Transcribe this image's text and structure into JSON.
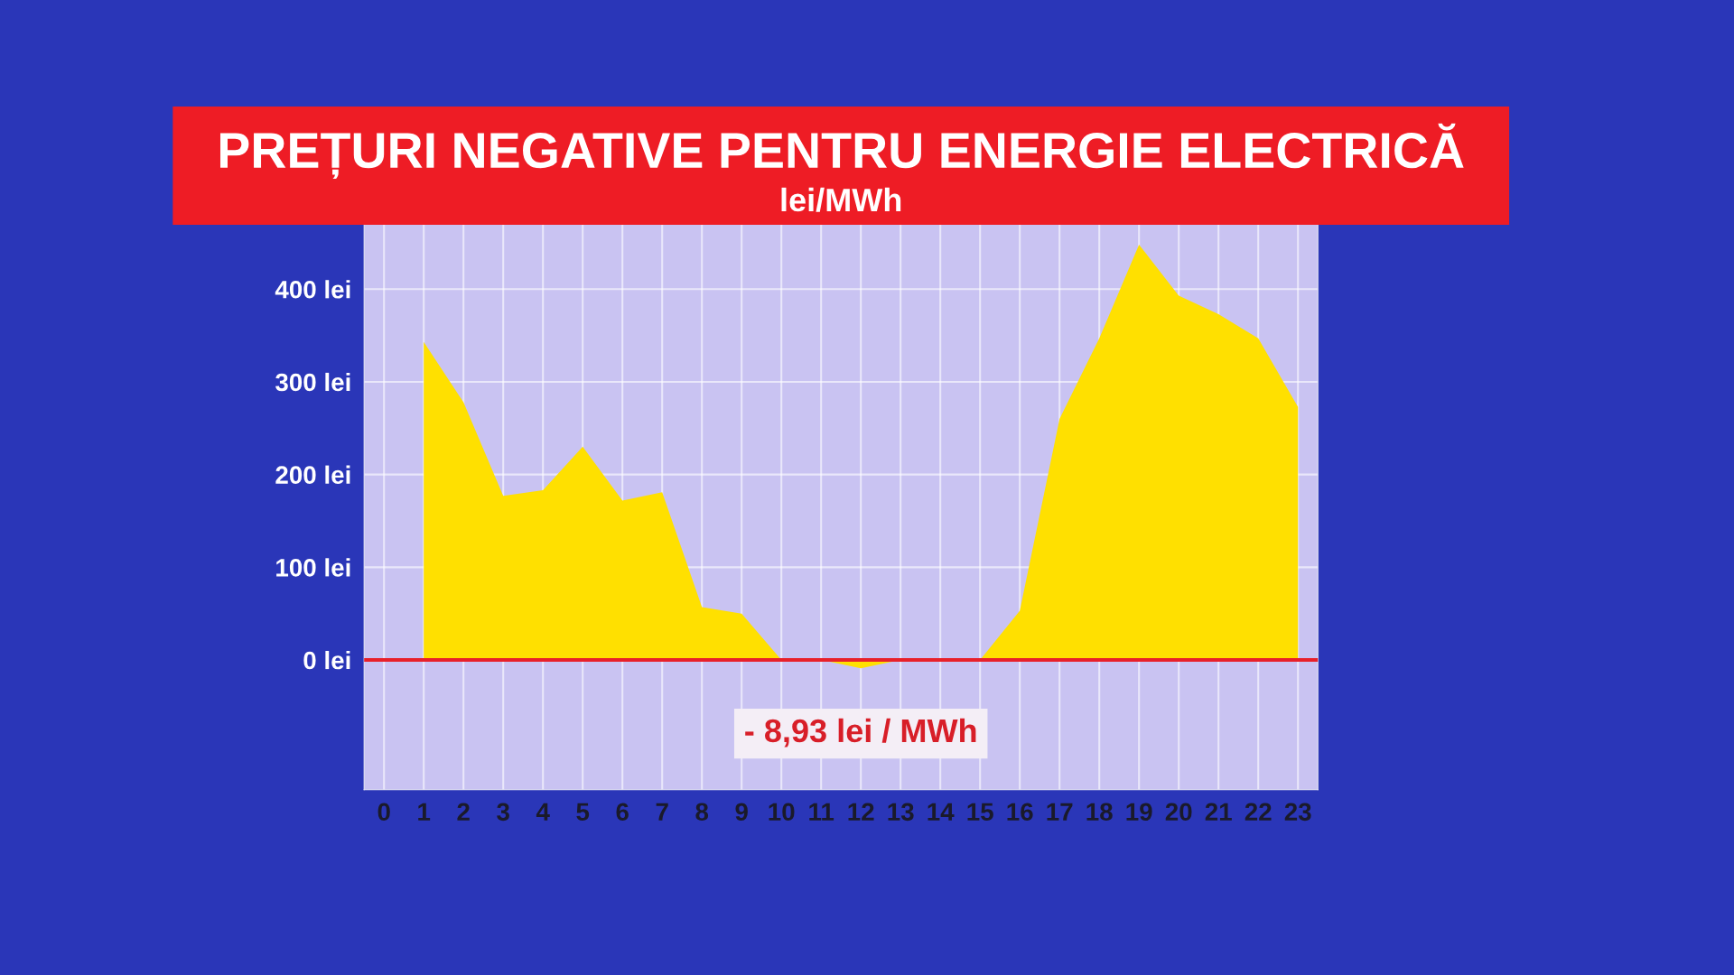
{
  "chart_data": {
    "type": "area",
    "title": "PREȚURI NEGATIVE PENTRU ENERGIE ELECTRICĂ",
    "subtitle": "lei/MWh",
    "x": [
      1,
      2,
      3,
      4,
      5,
      6,
      7,
      8,
      9,
      10,
      11,
      12,
      13,
      14,
      15,
      16,
      17,
      18,
      19,
      20,
      21,
      22,
      23
    ],
    "series": [
      {
        "color": "#ffe000",
        "values": [
          343,
          278,
          177,
          183,
          230,
          172,
          181,
          57,
          50,
          0,
          0,
          -8.93,
          0,
          0,
          0,
          53,
          260,
          347,
          448,
          393,
          373,
          347,
          273
        ]
      }
    ],
    "xlim": [
      -0.5,
      23.5
    ],
    "xticks": [
      0,
      1,
      2,
      3,
      4,
      5,
      6,
      7,
      8,
      9,
      10,
      11,
      12,
      13,
      14,
      15,
      16,
      17,
      18,
      19,
      20,
      21,
      22,
      23
    ],
    "ylim": [
      -140,
      470
    ],
    "yticks": [
      {
        "value": 0,
        "label": "0 lei"
      },
      {
        "value": 100,
        "label": "100 lei"
      },
      {
        "value": 200,
        "label": "200 lei"
      },
      {
        "value": 300,
        "label": "300 lei"
      },
      {
        "value": 400,
        "label": "400 lei"
      }
    ],
    "ref_lines": [
      {
        "axis": "y",
        "value": 0,
        "label": null,
        "color": "#e8202a"
      }
    ],
    "annotations": [
      {
        "text": "- 8,93 lei / MWh",
        "x": 12,
        "y": -8.93
      }
    ],
    "grid": true
  }
}
